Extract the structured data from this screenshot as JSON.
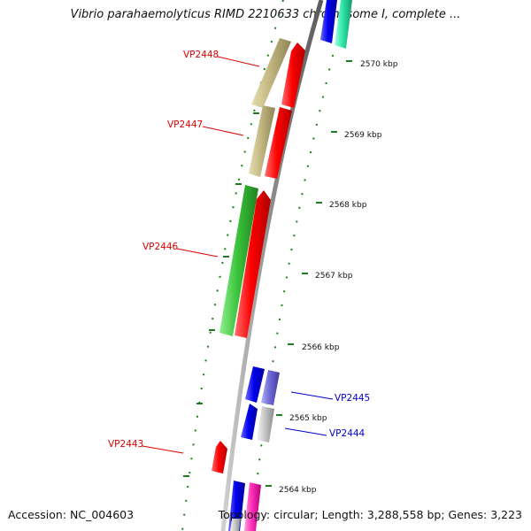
{
  "title": "Vibrio parahaemolyticus RIMD 2210633 chromosome I, complete ...",
  "footer": {
    "accession": "Accession: NC_004603",
    "stats": "Topology: circular; Length: 3,288,558 bp; Genes: 3,223"
  },
  "colors": {
    "backbone": "#8c8c8c",
    "tick": "#1e7d1e",
    "label_forward": "#dd0000",
    "label_reverse": "#0000cc"
  },
  "ticks": [
    {
      "label": "2564 kbp",
      "kbp": 2564
    },
    {
      "label": "2565 kbp",
      "kbp": 2565
    },
    {
      "label": "2566 kbp",
      "kbp": 2566
    },
    {
      "label": "2567 kbp",
      "kbp": 2567
    },
    {
      "label": "2568 kbp",
      "kbp": 2568
    },
    {
      "label": "2569 kbp",
      "kbp": 2569
    },
    {
      "label": "2570 kbp",
      "kbp": 2570
    }
  ],
  "gene_labels": [
    {
      "id": "VP2448",
      "strand": "forward"
    },
    {
      "id": "VP2447",
      "strand": "forward"
    },
    {
      "id": "VP2446",
      "strand": "forward"
    },
    {
      "id": "VP2445",
      "strand": "reverse"
    },
    {
      "id": "VP2444",
      "strand": "reverse"
    },
    {
      "id": "VP2443",
      "strand": "forward"
    }
  ]
}
